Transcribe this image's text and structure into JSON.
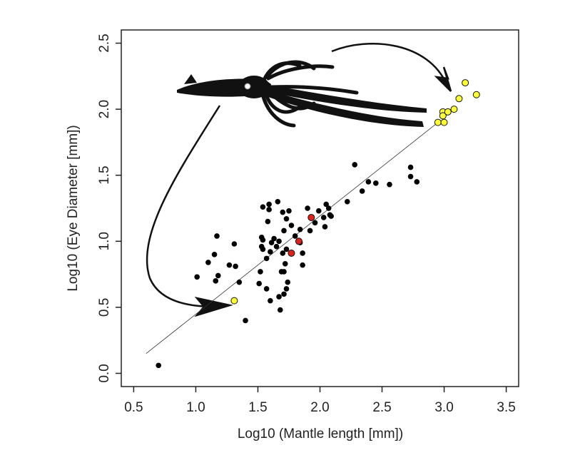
{
  "chart_data": {
    "type": "scatter",
    "x_label": "Log10 (Mantle length [mm])",
    "y_label": "Log10 (Eye Diameter [mm])",
    "xlim": [
      0.4,
      3.6
    ],
    "ylim": [
      -0.1,
      2.6
    ],
    "xticks": [
      0.5,
      {
        "value": 1,
        "label": "1.0"
      },
      1.5,
      {
        "value": 2,
        "label": "2.0"
      },
      2.5,
      {
        "value": 3,
        "label": "3.0"
      },
      3.5
    ],
    "yticks": [
      {
        "value": 0,
        "label": "0.0"
      },
      0.5,
      {
        "value": 1,
        "label": "1.0"
      },
      1.5,
      {
        "value": 2,
        "label": "2.0"
      },
      2.5
    ],
    "series": [
      {
        "color": "#000000",
        "x": [
          0.7,
          1.4,
          1.01,
          1.1,
          1.15,
          1.17,
          1.16,
          1.18,
          1.27,
          1.32,
          1.31,
          1.35,
          1.53,
          1.54,
          1.59,
          1.66,
          1.59,
          1.58,
          1.53,
          1.54,
          1.54,
          1.61,
          1.63,
          1.67,
          1.65,
          1.57,
          1.6,
          1.52,
          1.51,
          1.57,
          1.6,
          1.67,
          1.68,
          1.71,
          1.73,
          1.74,
          1.71,
          1.69,
          1.72,
          1.7,
          1.73,
          1.71,
          1.73,
          1.75,
          1.7,
          1.77,
          1.8,
          1.84,
          1.86,
          1.86,
          1.84,
          1.9,
          1.92,
          1.96,
          1.99,
          2.03,
          2.04,
          2.05,
          2.07,
          2.08,
          2.09,
          2.28,
          2.22,
          2.34,
          2.39,
          2.45,
          2.56,
          2.73,
          2.73,
          2.78
        ],
        "y": [
          0.06,
          0.4,
          0.73,
          0.84,
          0.9,
          1.04,
          0.7,
          0.74,
          0.82,
          0.81,
          0.98,
          0.69,
          1.03,
          1.26,
          1.28,
          1.3,
          1.24,
          1.15,
          0.96,
          0.94,
          1.01,
          0.99,
          1.02,
          1.0,
          0.96,
          0.87,
          0.92,
          0.77,
          0.68,
          0.64,
          0.55,
          0.58,
          0.48,
          0.6,
          0.64,
          0.69,
          0.77,
          0.77,
          0.83,
          0.91,
          0.94,
          1.08,
          1.17,
          1.23,
          1.22,
          1.12,
          1.04,
          0.99,
          0.91,
          0.82,
          1.09,
          1.25,
          1.08,
          1.14,
          1.23,
          1.18,
          1.11,
          1.28,
          1.25,
          1.2,
          1.19,
          1.58,
          1.3,
          1.38,
          1.45,
          1.44,
          1.43,
          1.56,
          1.49,
          1.45
        ]
      },
      {
        "color": "#e0201b",
        "x": [
          1.93,
          1.83,
          1.77
        ],
        "y": [
          1.18,
          1.0,
          0.91
        ]
      },
      {
        "color": "#ffff33",
        "x": [
          1.31,
          2.95,
          2.99,
          2.99,
          3.0,
          3.03,
          3.08,
          3.12,
          3.17,
          3.26
        ],
        "y": [
          0.55,
          1.9,
          1.98,
          1.95,
          1.9,
          1.98,
          2.0,
          2.08,
          2.2,
          2.11
        ]
      }
    ],
    "fit_line": {
      "x": [
        0.6,
        2.95
      ],
      "y": [
        0.15,
        1.9
      ]
    }
  }
}
